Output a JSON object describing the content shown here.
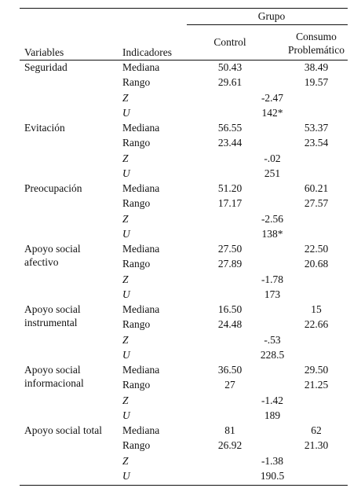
{
  "header": {
    "group": "Grupo",
    "columns": [
      "Variables",
      "Indicadores",
      "Control",
      "Consumo Problemático"
    ]
  },
  "variables": [
    {
      "name": "Seguridad",
      "rows": [
        {
          "indicator": "Mediana",
          "control": "50.43",
          "consumo": "38.49"
        },
        {
          "indicator": "Rango",
          "control": "29.61",
          "consumo": "19.57"
        },
        {
          "indicator": "Z",
          "value": "-2.47"
        },
        {
          "indicator": "U",
          "value": "142*"
        }
      ]
    },
    {
      "name": "Evitación",
      "rows": [
        {
          "indicator": "Mediana",
          "control": "56.55",
          "consumo": "53.37"
        },
        {
          "indicator": "Rango",
          "control": "23.44",
          "consumo": "23.54"
        },
        {
          "indicator": "Z",
          "value": "-.02"
        },
        {
          "indicator": "U",
          "value": "251"
        }
      ]
    },
    {
      "name": "Preocupación",
      "rows": [
        {
          "indicator": "Mediana",
          "control": "51.20",
          "consumo": "60.21"
        },
        {
          "indicator": "Rango",
          "control": "17.17",
          "consumo": "27.57"
        },
        {
          "indicator": "Z",
          "value": "-2.56"
        },
        {
          "indicator": "U",
          "value": "138*"
        }
      ]
    },
    {
      "name": "Apoyo social afectivo",
      "rows": [
        {
          "indicator": "Mediana",
          "control": "27.50",
          "consumo": "22.50"
        },
        {
          "indicator": "Rango",
          "control": "27.89",
          "consumo": "20.68"
        },
        {
          "indicator": "Z",
          "value": "-1.78"
        },
        {
          "indicator": "U",
          "value": "173"
        }
      ]
    },
    {
      "name": "Apoyo social instrumental",
      "rows": [
        {
          "indicator": "Mediana",
          "control": "16.50",
          "consumo": "15"
        },
        {
          "indicator": "Rango",
          "control": "24.48",
          "consumo": "22.66"
        },
        {
          "indicator": "Z",
          "value": "-.53"
        },
        {
          "indicator": "U",
          "value": "228.5"
        }
      ]
    },
    {
      "name": "Apoyo social informacional",
      "rows": [
        {
          "indicator": "Mediana",
          "control": "36.50",
          "consumo": "29.50"
        },
        {
          "indicator": "Rango",
          "control": "27",
          "consumo": "21.25"
        },
        {
          "indicator": "Z",
          "value": "-1.42"
        },
        {
          "indicator": "U",
          "value": "189"
        }
      ]
    },
    {
      "name": "Apoyo social total",
      "rows": [
        {
          "indicator": "Mediana",
          "control": "81",
          "consumo": "62"
        },
        {
          "indicator": "Rango",
          "control": "26.92",
          "consumo": "21.30"
        },
        {
          "indicator": "Z",
          "value": "-1.38"
        },
        {
          "indicator": "U",
          "value": "190.5"
        }
      ]
    }
  ]
}
